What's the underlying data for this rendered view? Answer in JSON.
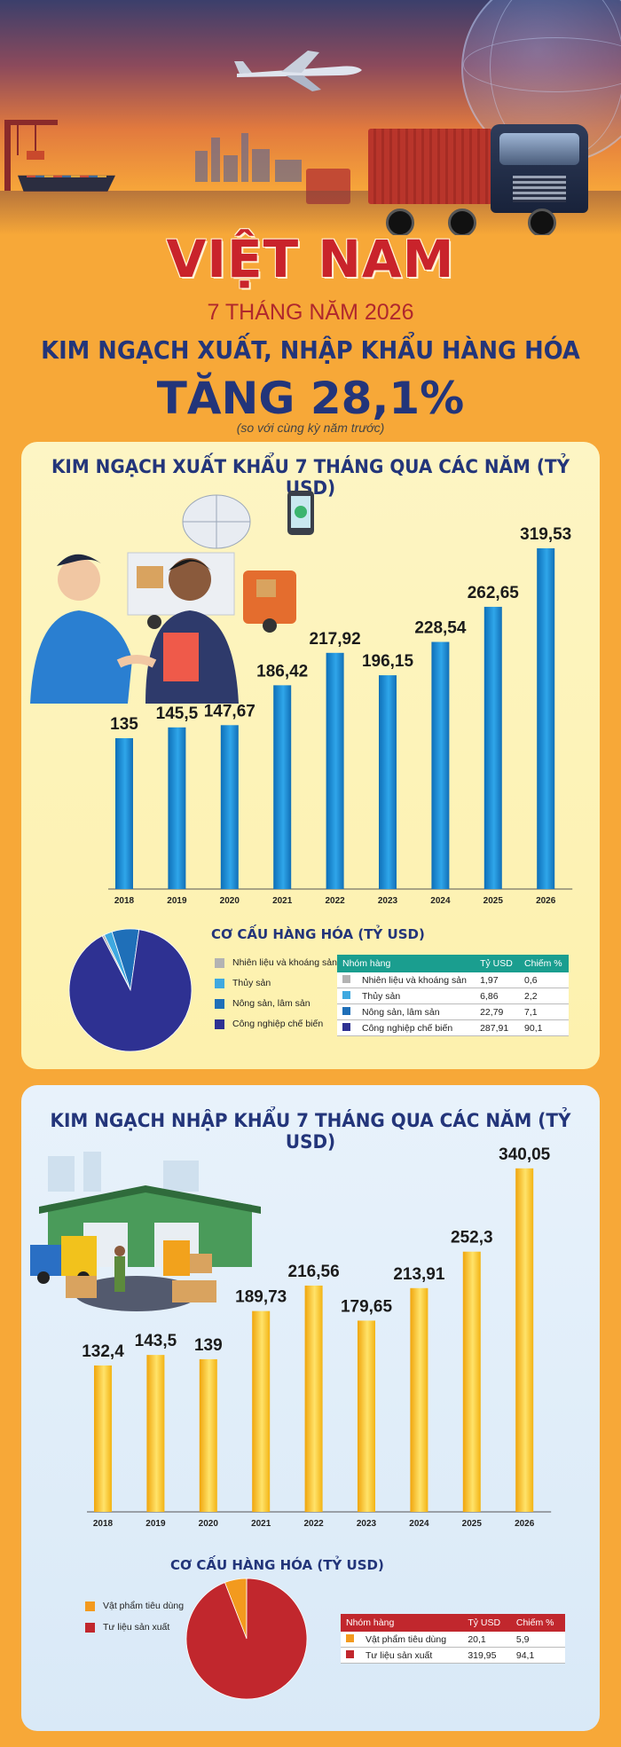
{
  "header": {
    "title": "VIỆT NAM",
    "subtitle": "7 THÁNG NĂM 2026",
    "headline": "KIM NGẠCH XUẤT, NHẬP KHẨU HÀNG HÓA",
    "growth": "TĂNG 28,1%",
    "note": "(so với cùng kỳ năm trước)"
  },
  "export": {
    "panel_title": "KIM NGẠCH XUẤT KHẨU 7 THÁNG QUA CÁC NĂM (TỶ USD)",
    "structure_title": "CƠ CẤU HÀNG HÓA (TỶ USD)",
    "legend": [
      "Nhiên liệu và khoáng sản",
      "Thủy sản",
      "Nông sản, lâm sản",
      "Công nghiệp chế biến"
    ],
    "table": {
      "headers": [
        "Nhóm hàng",
        "Tỷ USD",
        "Chiếm %"
      ],
      "rows": [
        {
          "name": "Nhiên liệu và khoáng sản",
          "value": "1,97",
          "share": "0,6",
          "color": "#b3b3b3"
        },
        {
          "name": "Thủy sản",
          "value": "6,86",
          "share": "2,2",
          "color": "#3fa9e0"
        },
        {
          "name": "Nông sản, lâm sản",
          "value": "22,79",
          "share": "7,1",
          "color": "#1f6fb8"
        },
        {
          "name": "Công nghiệp chế biến",
          "value": "287,91",
          "share": "90,1",
          "color": "#2e3192"
        }
      ]
    }
  },
  "import": {
    "panel_title": "KIM NGẠCH NHẬP KHẨU 7 THÁNG QUA CÁC NĂM (TỶ USD)",
    "structure_title": "CƠ CẤU HÀNG HÓA (TỶ USD)",
    "legend": [
      "Vật phẩm tiêu dùng",
      "Tư liệu sản xuất"
    ],
    "table": {
      "headers": [
        "Nhóm hàng",
        "Tỷ USD",
        "Chiếm %"
      ],
      "rows": [
        {
          "name": "Vật phẩm tiêu dùng",
          "value": "20,1",
          "share": "5,9",
          "color": "#f39a1e"
        },
        {
          "name": "Tư liệu sản xuất",
          "value": "319,95",
          "share": "94,1",
          "color": "#c1272d"
        }
      ]
    }
  },
  "colors": {
    "export_bar": "#1d8fd8",
    "import_bar": "#f7b615",
    "export_table_header": "#1a9e8f",
    "import_table_header": "#c1272d",
    "title_red": "#c9232b",
    "title_blue": "#23357a"
  },
  "chart_data": [
    {
      "type": "bar",
      "categories": [
        "2018",
        "2019",
        "2020",
        "2021",
        "2022",
        "2023",
        "2024",
        "2025",
        "2026"
      ],
      "values": [
        135,
        145.5,
        147.67,
        186.42,
        217.92,
        196.15,
        228.54,
        262.65,
        319.53
      ],
      "labels": [
        "135",
        "145,5",
        "147,67",
        "186,42",
        "217,92",
        "196,15",
        "228,54",
        "262,65",
        "319,53"
      ],
      "title": "KIM NGẠCH XUẤT KHẨU 7 THÁNG QUA CÁC NĂM (TỶ USD)",
      "ylim": [
        0,
        330
      ]
    },
    {
      "type": "pie",
      "categories": [
        "Nhiên liệu và khoáng sản",
        "Thủy sản",
        "Nông sản, lâm sản",
        "Công nghiệp chế biến"
      ],
      "values": [
        1.97,
        6.86,
        22.79,
        287.91
      ],
      "title": "CƠ CẤU HÀNG HÓA (TỶ USD)"
    },
    {
      "type": "bar",
      "categories": [
        "2018",
        "2019",
        "2020",
        "2021",
        "2022",
        "2023",
        "2024",
        "2025",
        "2026"
      ],
      "values": [
        132.4,
        143.5,
        139,
        189.73,
        216.56,
        179.65,
        213.91,
        252.3,
        340.05
      ],
      "labels": [
        "132,4",
        "143,5",
        "139",
        "189,73",
        "216,56",
        "179,65",
        "213,91",
        "252,3",
        "340,05"
      ],
      "title": "KIM NGẠCH NHẬP KHẨU 7 THÁNG QUA CÁC NĂM (TỶ USD)",
      "ylim": [
        0,
        350
      ]
    },
    {
      "type": "pie",
      "categories": [
        "Vật phẩm tiêu dùng",
        "Tư liệu sản xuất"
      ],
      "values": [
        20.1,
        319.95
      ],
      "title": "CƠ CẤU HÀNG HÓA (TỶ USD)"
    }
  ]
}
